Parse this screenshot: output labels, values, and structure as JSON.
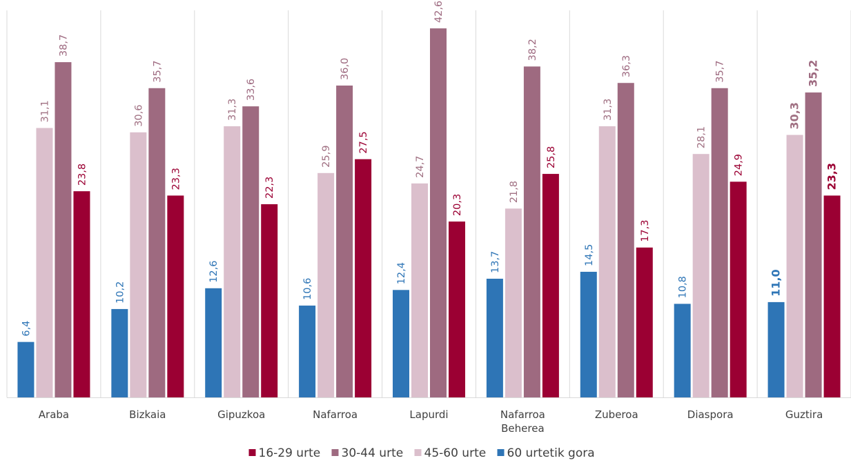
{
  "chart_data": {
    "type": "bar",
    "title": "",
    "xlabel": "",
    "ylabel": "",
    "ylim": [
      0,
      45
    ],
    "grid": "vertical separators between categories",
    "legend_placement": "bottom-center",
    "categories": [
      [
        "Araba"
      ],
      [
        "Bizkaia"
      ],
      [
        "Gipuzkoa"
      ],
      [
        "Nafarroa"
      ],
      [
        "Lapurdi"
      ],
      [
        "Nafarroa",
        "Beherea"
      ],
      [
        "Zuberoa"
      ],
      [
        "Diaspora"
      ],
      [
        "Guztira"
      ]
    ],
    "series": [
      {
        "name": "60 urtetik gora",
        "color": "#2e75b6",
        "label_color": "#2e75b6",
        "values": [
          6.4,
          10.2,
          12.6,
          10.6,
          12.4,
          13.7,
          14.5,
          10.8,
          11.0
        ],
        "labels": [
          "6,4",
          "10,2",
          "12,6",
          "10,6",
          "12,4",
          "13,7",
          "14,5",
          "10,8",
          "11,0"
        ]
      },
      {
        "name": "45-60 urte",
        "color": "#dbbfcc",
        "label_color": "#a07082",
        "values": [
          31.1,
          30.6,
          31.3,
          25.9,
          24.7,
          21.8,
          31.3,
          28.1,
          30.3
        ],
        "labels": [
          "31,1",
          "30,6",
          "31,3",
          "25,9",
          "24,7",
          "21,8",
          "31,3",
          "28,1",
          "30,3"
        ]
      },
      {
        "name": "30-44 urte",
        "color": "#9e6a80",
        "label_color": "#9e6a80",
        "values": [
          38.7,
          35.7,
          33.6,
          36.0,
          42.6,
          38.2,
          36.3,
          35.7,
          35.2
        ],
        "labels": [
          "38,7",
          "35,7",
          "33,6",
          "36,0",
          "42,6",
          "38,2",
          "36,3",
          "35,7",
          "35,2"
        ]
      },
      {
        "name": "16-29 urte",
        "color": "#9b0033",
        "label_color": "#9b0033",
        "values": [
          23.8,
          23.3,
          22.3,
          27.5,
          20.3,
          25.8,
          17.3,
          24.9,
          23.3
        ],
        "labels": [
          "23,8",
          "23,3",
          "22,3",
          "27,5",
          "20,3",
          "25,8",
          "17,3",
          "24,9",
          "23,3"
        ]
      }
    ],
    "bold_category_index": 8,
    "legend_order": [
      "16-29 urte",
      "30-44 urte",
      "45-60 urte",
      "60 urtetik gora"
    ]
  }
}
